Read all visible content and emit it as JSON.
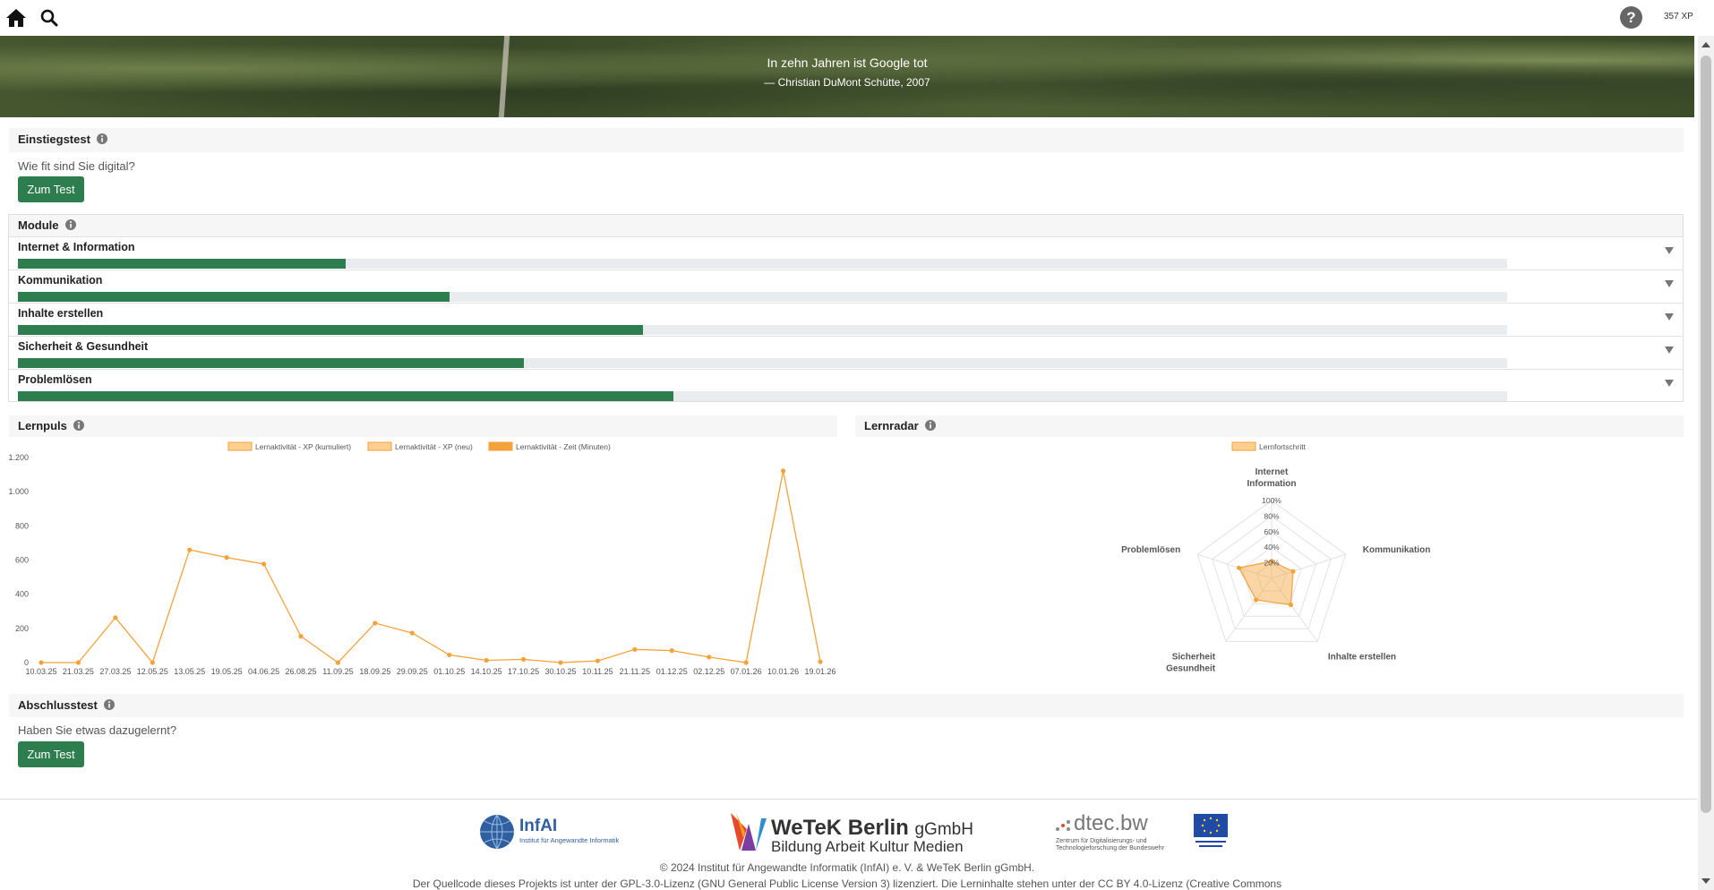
{
  "nav": {
    "help": "?",
    "xp": "357 XP"
  },
  "banner": {
    "quote": "In zehn Jahren ist Google tot",
    "author": "— Christian DuMont Schütte, 2007"
  },
  "entry_test": {
    "title": "Einstiegstest",
    "text": "Wie fit sind Sie digital?",
    "button": "Zum Test"
  },
  "modules": {
    "title": "Module",
    "items": [
      {
        "name": "Internet & Information",
        "progress": 22
      },
      {
        "name": "Kommunikation",
        "progress": 29
      },
      {
        "name": "Inhalte erstellen",
        "progress": 42
      },
      {
        "name": "Sicherheit & Gesundheit",
        "progress": 34
      },
      {
        "name": "Problemlösen",
        "progress": 44
      }
    ]
  },
  "lernpuls": {
    "title": "Lernpuls"
  },
  "lernradar": {
    "title": "Lernradar"
  },
  "final_test": {
    "title": "Abschlusstest",
    "text": "Haben Sie etwas dazugelernt?",
    "button": "Zum Test"
  },
  "footer": {
    "infai": "InfAI",
    "infai_sub": "Institut für Angewandte Informatik",
    "wetek": "WeTeK Berlin",
    "wetek_suffix": "gGmbH",
    "wetek_sub": "Bildung Arbeit Kultur Medien",
    "dtec": "dtec.bw",
    "dtec_sub": [
      "Zentrum für Digitalisierungs- und",
      "Technologieforschung der Bundeswehr"
    ],
    "copyright": "© 2024 Institut für Angewandte Informatik (InfAI) e. V. & WeTeK Berlin gGmbH.",
    "license": "Der Quellcode dieses Projekts ist unter der GPL-3.0-Lizenz (GNU General Public License Version 3) lizenziert. Die Lerninhalte stehen unter der CC BY 4.0-Lizenz (Creative Commons"
  },
  "chart_data": [
    {
      "type": "line",
      "categories": [
        "10.03.25",
        "21.03.25",
        "27.03.25",
        "12.05.25",
        "13.05.25",
        "19.05.25",
        "04.06.25",
        "26.08.25",
        "11.09.25",
        "18.09.25",
        "29.09.25",
        "01.10.25",
        "14.10.25",
        "17.10.25",
        "30.10.25",
        "10.11.25",
        "21.11.25",
        "01.12.25",
        "02.12.25",
        "07.01.26",
        "10.01.26",
        "19.01.26"
      ],
      "series": [
        {
          "name": "Lernaktivität - XP (kumuliert)",
          "color": "#ffcf8f"
        },
        {
          "name": "Lernaktivität - XP (neu)",
          "color": "#ffcf8f"
        },
        {
          "name": "Lernaktivität - Zeit (Minuten)",
          "color": "#f5a23a",
          "values": [
            0,
            0,
            263,
            0,
            660,
            615,
            577,
            154,
            0,
            231,
            173,
            45,
            13,
            19,
            0,
            10,
            77,
            70,
            32,
            0,
            1122,
            5
          ]
        }
      ],
      "ylim": [
        0,
        1200
      ],
      "yticks": [
        0,
        200,
        400,
        600,
        800,
        {
          "value": 1000,
          "label": "1.000"
        },
        {
          "value": 1200,
          "label": "1.200"
        }
      ],
      "grid": false
    },
    {
      "type": "radar",
      "categories": [
        [
          "Internet",
          "Information"
        ],
        [
          "Kommunikation"
        ],
        [
          "Inhalte erstellen"
        ],
        [
          "Sicherheit",
          "Gesundheit"
        ],
        [
          "Problemlösen"
        ]
      ],
      "series": [
        {
          "name": "Lernfortschritt",
          "color": "#f5a23a",
          "values": [
            22,
            29,
            42,
            34,
            44
          ]
        }
      ],
      "rlim": [
        0,
        100
      ],
      "rticks": [
        {
          "value": 20,
          "label": "20%"
        },
        {
          "value": 40,
          "label": "40%"
        },
        {
          "value": 60,
          "label": "60%"
        },
        {
          "value": 80,
          "label": "80%"
        },
        {
          "value": 100,
          "label": "100%"
        }
      ],
      "grid": true
    }
  ]
}
